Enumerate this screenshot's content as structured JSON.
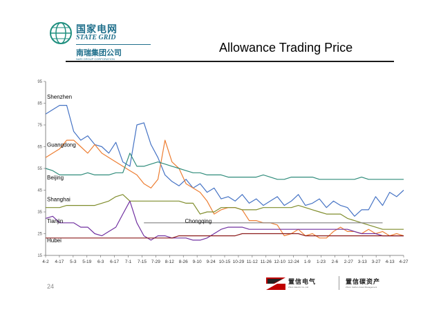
{
  "header": {
    "logo_cn": "国家电网",
    "logo_en": "STATE GRID",
    "logo_sub": "南瑞集团公司",
    "logo_sub_en": "NARI GROUP CORPORATION",
    "title": "Allowance Trading Price"
  },
  "footer": {
    "page_number": "24",
    "company1_cn": "置信电气",
    "company1_en": "Zhixin Electric Co.,Ltd",
    "company2_cn": "置信碳资产",
    "company2_en": "Zhixin Carbon Asset Management"
  },
  "colors": {
    "shenzhen": "#4472c4",
    "guangdong": "#ed7d31",
    "beijing": "#2e8b7a",
    "shanghai": "#7f8c2b",
    "tianjin": "#7030a0",
    "hubei": "#8b1a1a",
    "chongqing": "#808080",
    "axis": "#666666"
  },
  "chart_data": {
    "type": "line",
    "title": "",
    "xlabel": "",
    "ylabel": "",
    "ylim": [
      15,
      95
    ],
    "y_ticks": [
      15,
      25,
      35,
      45,
      55,
      65,
      75,
      85,
      95
    ],
    "x_ticks": [
      "4-2",
      "4-17",
      "5-3",
      "5-19",
      "6-3",
      "6-17",
      "7-1",
      "7-15",
      "7-29",
      "8-12",
      "8-26",
      "9-10",
      "9-24",
      "10-15",
      "10-29",
      "11-12",
      "11-26",
      "12-10",
      "12-24",
      "1-9",
      "1-23",
      "2-6",
      "2-27",
      "3-13",
      "3-27",
      "4-13",
      "4-27"
    ],
    "grid": false,
    "series": [
      {
        "name": "Shenzhen",
        "label_at": [
          0,
          87
        ],
        "values": [
          80,
          82,
          84,
          84,
          72,
          68,
          70,
          66,
          65,
          62,
          67,
          58,
          56,
          75,
          76,
          66,
          60,
          52,
          49,
          47,
          50,
          46,
          48,
          44,
          46,
          41,
          42,
          40,
          43,
          39,
          41,
          38,
          40,
          42,
          38,
          40,
          43,
          38,
          39,
          41,
          37,
          40,
          38,
          37,
          33,
          36,
          36,
          42,
          38,
          44,
          42,
          45
        ]
      },
      {
        "name": "Guangdong",
        "label_at": [
          0,
          65
        ],
        "values": [
          60,
          62,
          64,
          68,
          68,
          65,
          62,
          66,
          62,
          60,
          58,
          56,
          54,
          52,
          48,
          46,
          50,
          68,
          58,
          55,
          48,
          46,
          44,
          40,
          34,
          36,
          37,
          37,
          36,
          31,
          31,
          30,
          30,
          29,
          24,
          25,
          27,
          24,
          25,
          23,
          23,
          26,
          28,
          26,
          26,
          25,
          27,
          25,
          26,
          24,
          25,
          24
        ]
      },
      {
        "name": "Beijing",
        "label_at": [
          0,
          50
        ],
        "values": [
          55,
          54,
          52,
          52,
          52,
          52,
          53,
          52,
          52,
          52,
          53,
          53,
          62,
          56,
          56,
          57,
          58,
          57,
          56,
          55,
          54,
          53,
          53,
          52,
          52,
          52,
          51,
          51,
          51,
          51,
          51,
          52,
          51,
          50,
          50,
          51,
          51,
          51,
          51,
          50,
          50,
          50,
          50,
          50,
          50,
          51,
          50,
          50,
          50,
          50,
          50,
          50
        ]
      },
      {
        "name": "Shanghai",
        "label_at": [
          0,
          40
        ],
        "values": [
          37,
          37,
          37,
          38,
          38,
          38,
          38,
          38,
          39,
          40,
          42,
          43,
          40,
          40,
          40,
          40,
          40,
          40,
          40,
          40,
          39,
          39,
          34,
          35,
          35,
          37,
          37,
          37,
          36,
          36,
          36,
          37,
          37,
          37,
          37,
          37,
          38,
          37,
          36,
          35,
          34,
          34,
          34,
          32,
          31,
          30,
          29,
          28,
          27,
          27,
          27,
          27
        ]
      },
      {
        "name": "Tianjin",
        "label_at": [
          0,
          30
        ],
        "values": [
          32,
          33,
          30,
          30,
          30,
          28,
          28,
          25,
          24,
          26,
          28,
          34,
          40,
          30,
          24,
          22,
          24,
          24,
          23,
          23,
          23,
          22,
          22,
          23,
          25,
          27,
          28,
          28,
          28,
          27,
          27,
          27,
          27,
          27,
          27,
          27,
          27,
          27,
          27,
          27,
          27,
          27,
          27,
          27,
          26,
          25,
          25,
          25,
          24,
          24,
          24,
          24
        ]
      },
      {
        "name": "Hubei",
        "label_at": [
          0,
          21
        ],
        "values": [
          23,
          23,
          23,
          23,
          23,
          23,
          23,
          23,
          23,
          23,
          23,
          23,
          23,
          23,
          23,
          23,
          23,
          23,
          23,
          24,
          24,
          24,
          24,
          24,
          24,
          24,
          24,
          24,
          25,
          25,
          25,
          25,
          25,
          25,
          25,
          25,
          25,
          24,
          24,
          24,
          24,
          24,
          24,
          24,
          24,
          24,
          24,
          24,
          24,
          24,
          24,
          24
        ]
      },
      {
        "name": "Chongqing",
        "label_at": [
          0.5,
          30
        ],
        "start_index": 14,
        "end_index": 48,
        "values": [
          30
        ]
      }
    ]
  }
}
